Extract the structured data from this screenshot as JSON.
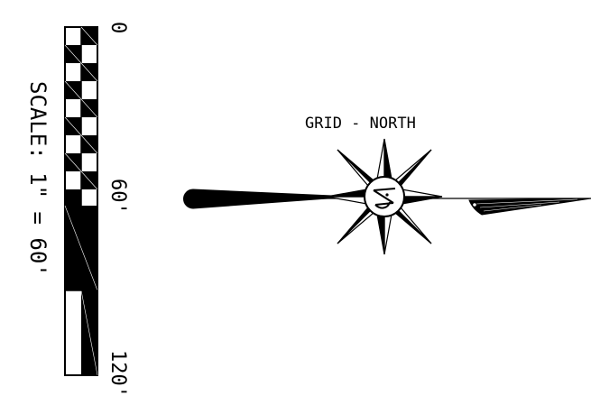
{
  "north_arrow": {
    "label": "GRID - NORTH"
  },
  "scale_bar": {
    "caption": "SCALE: 1\" = 60'",
    "ticks": [
      "0",
      "60'",
      "120'"
    ],
    "tick_values": [
      0,
      60,
      120
    ],
    "ratio_text": "1\" = 60'"
  },
  "colors": {
    "ink": "#000000",
    "paper": "#ffffff"
  }
}
